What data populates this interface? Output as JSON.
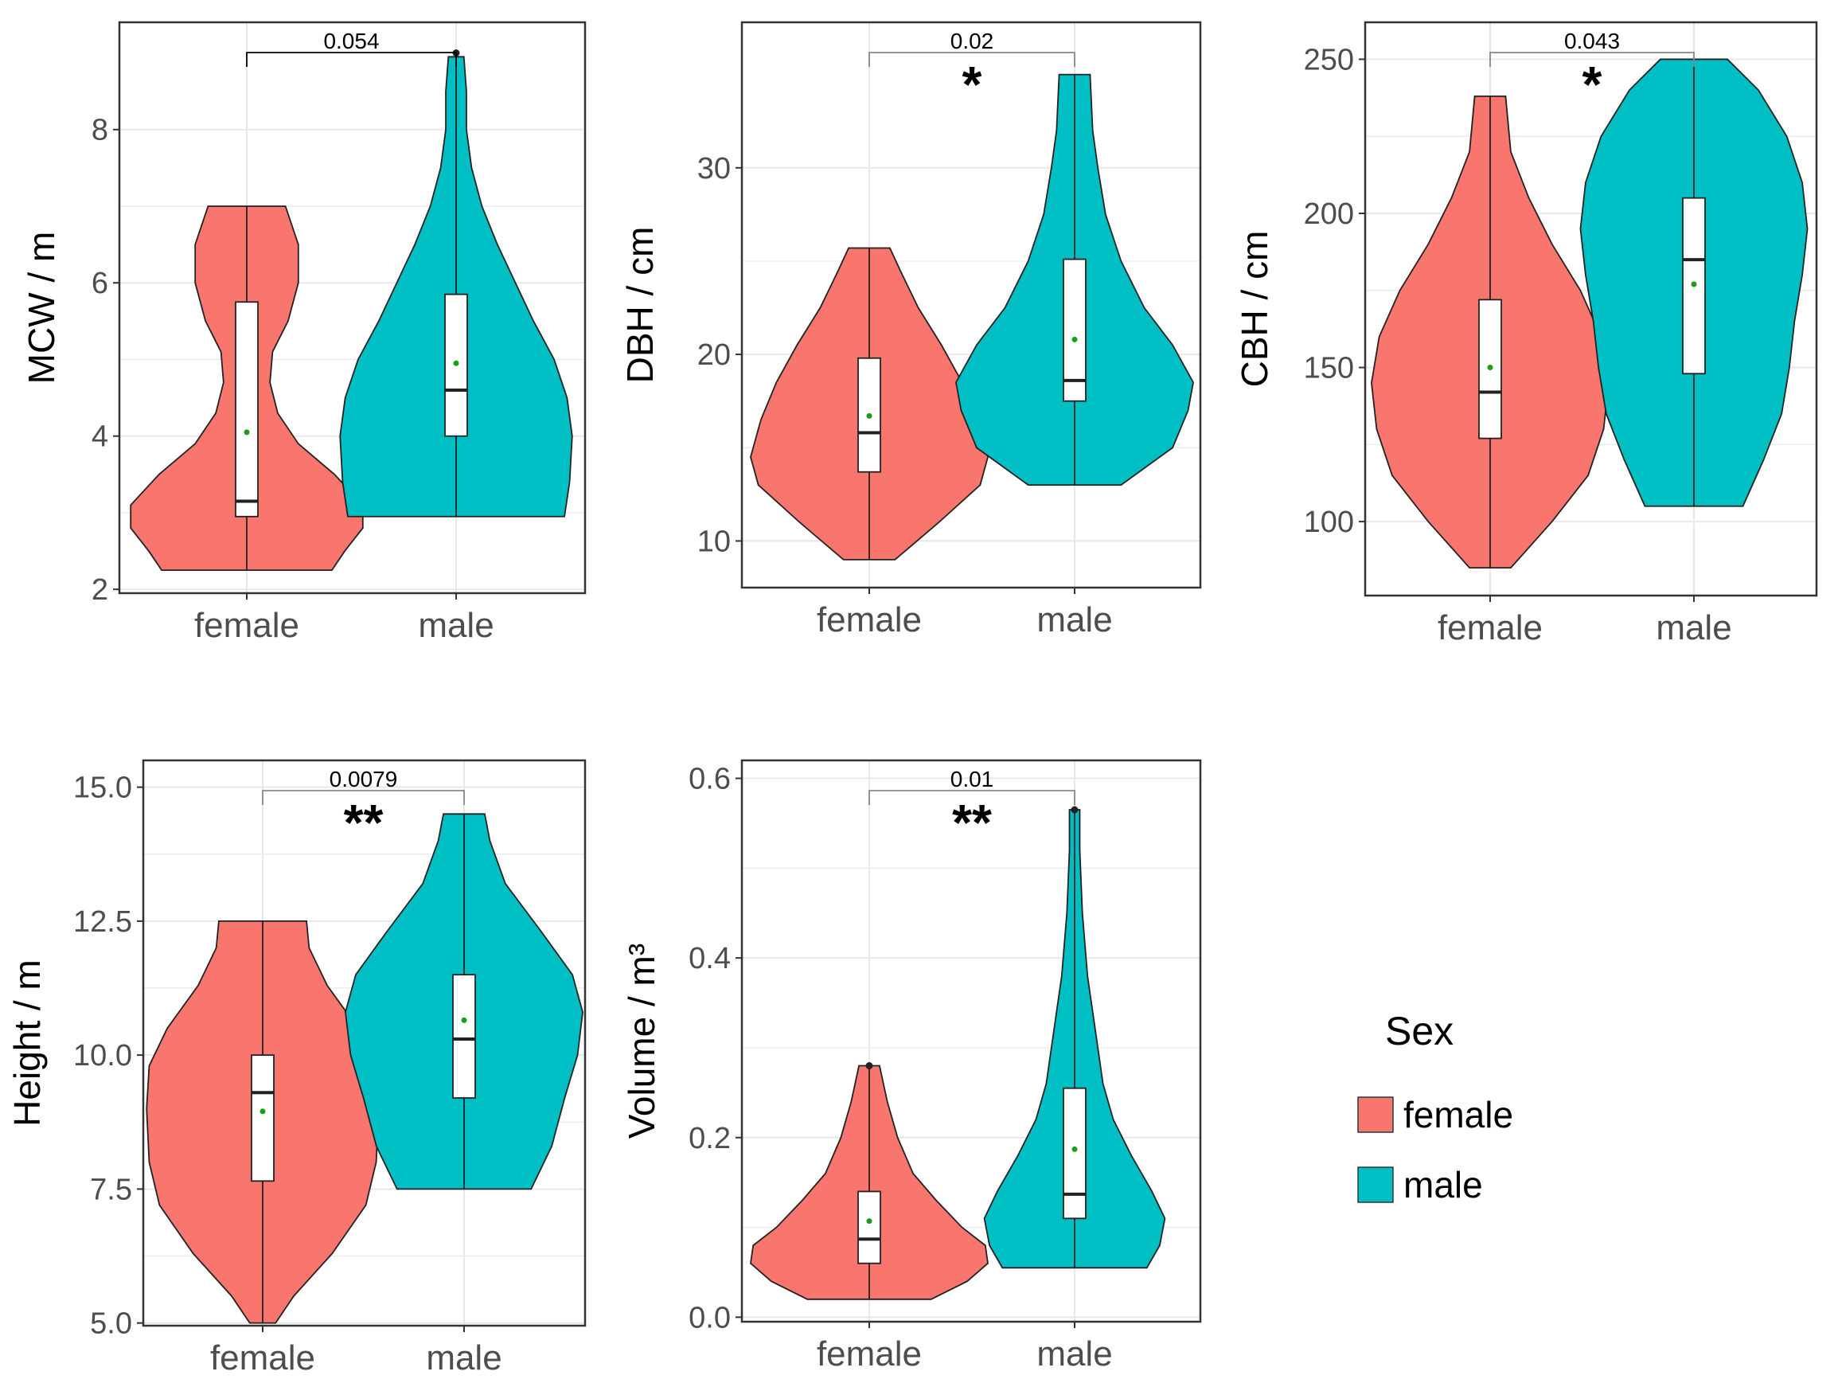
{
  "colors": {
    "female": "#F8766D",
    "male": "#00BFC4",
    "mean_point": "#1a9e1a",
    "panel_border": "#333333",
    "grid": "#e8e8e8"
  },
  "chart_data": [
    {
      "type": "violin",
      "ylabel": "MCW / m",
      "categories": [
        "female",
        "male"
      ],
      "ylim": [
        1.95,
        9.4
      ],
      "yticks": [
        2,
        4,
        6,
        8
      ],
      "ytick_labels": [
        "2",
        "4",
        "6",
        "8"
      ],
      "p_value": "0.054",
      "significance": "",
      "series": [
        {
          "name": "female",
          "min": 2.25,
          "q1": 2.95,
          "median": 3.15,
          "q3": 5.75,
          "max": 7.0,
          "mean": 4.05,
          "outliers": [],
          "density": [
            [
              2.25,
              0.33
            ],
            [
              2.5,
              0.38
            ],
            [
              2.8,
              0.45
            ],
            [
              3.1,
              0.45
            ],
            [
              3.5,
              0.34
            ],
            [
              3.9,
              0.2
            ],
            [
              4.3,
              0.12
            ],
            [
              4.7,
              0.09
            ],
            [
              5.1,
              0.1
            ],
            [
              5.5,
              0.16
            ],
            [
              6.0,
              0.2
            ],
            [
              6.5,
              0.2
            ],
            [
              7.0,
              0.15
            ]
          ]
        },
        {
          "name": "male",
          "min": 2.95,
          "q1": 4.0,
          "median": 4.6,
          "q3": 5.85,
          "max": 9.0,
          "mean": 4.95,
          "outliers": [
            9.0
          ],
          "density": [
            [
              2.95,
              0.42
            ],
            [
              3.4,
              0.44
            ],
            [
              4.0,
              0.45
            ],
            [
              4.5,
              0.43
            ],
            [
              5.0,
              0.38
            ],
            [
              5.5,
              0.3
            ],
            [
              6.0,
              0.23
            ],
            [
              6.5,
              0.16
            ],
            [
              7.0,
              0.1
            ],
            [
              7.5,
              0.06
            ],
            [
              8.0,
              0.04
            ],
            [
              8.5,
              0.04
            ],
            [
              8.95,
              0.03
            ]
          ]
        }
      ]
    },
    {
      "type": "violin",
      "ylabel": "DBH / cm",
      "categories": [
        "female",
        "male"
      ],
      "ylim": [
        7.5,
        37.8
      ],
      "yticks": [
        10,
        20,
        30
      ],
      "ytick_labels": [
        "10",
        "20",
        "30"
      ],
      "p_value": "0.02",
      "significance": "*",
      "series": [
        {
          "name": "female",
          "min": 9.0,
          "q1": 13.7,
          "median": 15.8,
          "q3": 19.8,
          "max": 25.7,
          "mean": 16.7,
          "outliers": [],
          "density": [
            [
              9.0,
              0.1
            ],
            [
              11.0,
              0.27
            ],
            [
              13.0,
              0.43
            ],
            [
              14.5,
              0.46
            ],
            [
              16.5,
              0.42
            ],
            [
              18.5,
              0.36
            ],
            [
              20.5,
              0.28
            ],
            [
              22.5,
              0.19
            ],
            [
              24.5,
              0.12
            ],
            [
              25.7,
              0.08
            ]
          ]
        },
        {
          "name": "male",
          "min": 13.0,
          "q1": 17.5,
          "median": 18.6,
          "q3": 25.1,
          "max": 35.0,
          "mean": 20.8,
          "outliers": [],
          "density": [
            [
              13.0,
              0.18
            ],
            [
              15.0,
              0.38
            ],
            [
              17.0,
              0.44
            ],
            [
              18.5,
              0.46
            ],
            [
              20.5,
              0.38
            ],
            [
              22.5,
              0.27
            ],
            [
              25.0,
              0.18
            ],
            [
              27.5,
              0.12
            ],
            [
              30.0,
              0.09
            ],
            [
              32.0,
              0.07
            ],
            [
              35.0,
              0.06
            ]
          ]
        }
      ]
    },
    {
      "type": "violin",
      "ylabel": "CBH / cm",
      "categories": [
        "female",
        "male"
      ],
      "ylim": [
        76,
        262
      ],
      "yticks": [
        100,
        150,
        200,
        250
      ],
      "ytick_labels": [
        "100",
        "150",
        "200",
        "250"
      ],
      "p_value": "0.043",
      "significance": "*",
      "series": [
        {
          "name": "female",
          "min": 85,
          "q1": 127,
          "median": 142,
          "q3": 172,
          "max": 238,
          "mean": 150,
          "outliers": [],
          "density": [
            [
              85,
              0.08
            ],
            [
              100,
              0.24
            ],
            [
              115,
              0.38
            ],
            [
              130,
              0.44
            ],
            [
              145,
              0.46
            ],
            [
              160,
              0.43
            ],
            [
              175,
              0.35
            ],
            [
              190,
              0.24
            ],
            [
              205,
              0.15
            ],
            [
              220,
              0.08
            ],
            [
              238,
              0.06
            ]
          ]
        },
        {
          "name": "male",
          "min": 105,
          "q1": 148,
          "median": 185,
          "q3": 205,
          "max": 250,
          "mean": 177,
          "outliers": [],
          "density": [
            [
              105,
              0.19
            ],
            [
              120,
              0.27
            ],
            [
              135,
              0.34
            ],
            [
              150,
              0.37
            ],
            [
              165,
              0.39
            ],
            [
              180,
              0.42
            ],
            [
              195,
              0.44
            ],
            [
              210,
              0.42
            ],
            [
              225,
              0.36
            ],
            [
              240,
              0.25
            ],
            [
              250,
              0.13
            ]
          ]
        }
      ]
    },
    {
      "type": "violin",
      "ylabel": "Height / m",
      "categories": [
        "female",
        "male"
      ],
      "ylim": [
        4.95,
        15.5
      ],
      "yticks": [
        5.0,
        7.5,
        10.0,
        12.5,
        15.0
      ],
      "ytick_labels": [
        "5.0",
        "7.5",
        "10.0",
        "12.5",
        "15.0"
      ],
      "p_value": "0.0079",
      "significance": "**",
      "series": [
        {
          "name": "female",
          "min": 5.0,
          "q1": 7.65,
          "median": 9.3,
          "q3": 10.0,
          "max": 12.5,
          "mean": 8.95,
          "outliers": [],
          "density": [
            [
              5.0,
              0.05
            ],
            [
              5.5,
              0.12
            ],
            [
              6.3,
              0.27
            ],
            [
              7.2,
              0.4
            ],
            [
              8.0,
              0.44
            ],
            [
              9.0,
              0.45
            ],
            [
              9.8,
              0.44
            ],
            [
              10.5,
              0.37
            ],
            [
              11.3,
              0.25
            ],
            [
              12.0,
              0.18
            ],
            [
              12.5,
              0.17
            ]
          ]
        },
        {
          "name": "male",
          "min": 7.5,
          "q1": 9.2,
          "median": 10.3,
          "q3": 11.5,
          "max": 14.5,
          "mean": 10.65,
          "outliers": [],
          "density": [
            [
              7.5,
              0.26
            ],
            [
              8.3,
              0.34
            ],
            [
              9.2,
              0.39
            ],
            [
              10.0,
              0.44
            ],
            [
              10.8,
              0.46
            ],
            [
              11.5,
              0.42
            ],
            [
              12.3,
              0.3
            ],
            [
              13.2,
              0.16
            ],
            [
              14.0,
              0.1
            ],
            [
              14.5,
              0.08
            ]
          ]
        }
      ]
    },
    {
      "type": "violin",
      "ylabel": "Volume / m³",
      "categories": [
        "female",
        "male"
      ],
      "ylim": [
        -0.005,
        0.62
      ],
      "yticks": [
        0.0,
        0.2,
        0.4,
        0.6
      ],
      "ytick_labels": [
        "0.0",
        "0.2",
        "0.4",
        "0.6"
      ],
      "p_value": "0.01",
      "significance": "**",
      "series": [
        {
          "name": "female",
          "min": 0.02,
          "q1": 0.06,
          "median": 0.087,
          "q3": 0.14,
          "max": 0.28,
          "mean": 0.107,
          "outliers": [
            0.28
          ],
          "density": [
            [
              0.02,
              0.24
            ],
            [
              0.04,
              0.38
            ],
            [
              0.06,
              0.46
            ],
            [
              0.08,
              0.45
            ],
            [
              0.1,
              0.36
            ],
            [
              0.13,
              0.26
            ],
            [
              0.16,
              0.17
            ],
            [
              0.2,
              0.11
            ],
            [
              0.24,
              0.07
            ],
            [
              0.28,
              0.04
            ]
          ]
        },
        {
          "name": "male",
          "min": 0.055,
          "q1": 0.11,
          "median": 0.137,
          "q3": 0.255,
          "max": 0.565,
          "mean": 0.187,
          "outliers": [
            0.565
          ],
          "density": [
            [
              0.055,
              0.28
            ],
            [
              0.08,
              0.33
            ],
            [
              0.11,
              0.35
            ],
            [
              0.14,
              0.3
            ],
            [
              0.18,
              0.22
            ],
            [
              0.22,
              0.15
            ],
            [
              0.26,
              0.11
            ],
            [
              0.32,
              0.08
            ],
            [
              0.38,
              0.05
            ],
            [
              0.45,
              0.03
            ],
            [
              0.52,
              0.02
            ],
            [
              0.565,
              0.02
            ]
          ]
        }
      ]
    }
  ],
  "legend": {
    "title": "Sex",
    "items": [
      {
        "label": "female",
        "color": "#F8766D"
      },
      {
        "label": "male",
        "color": "#00BFC4"
      }
    ]
  }
}
